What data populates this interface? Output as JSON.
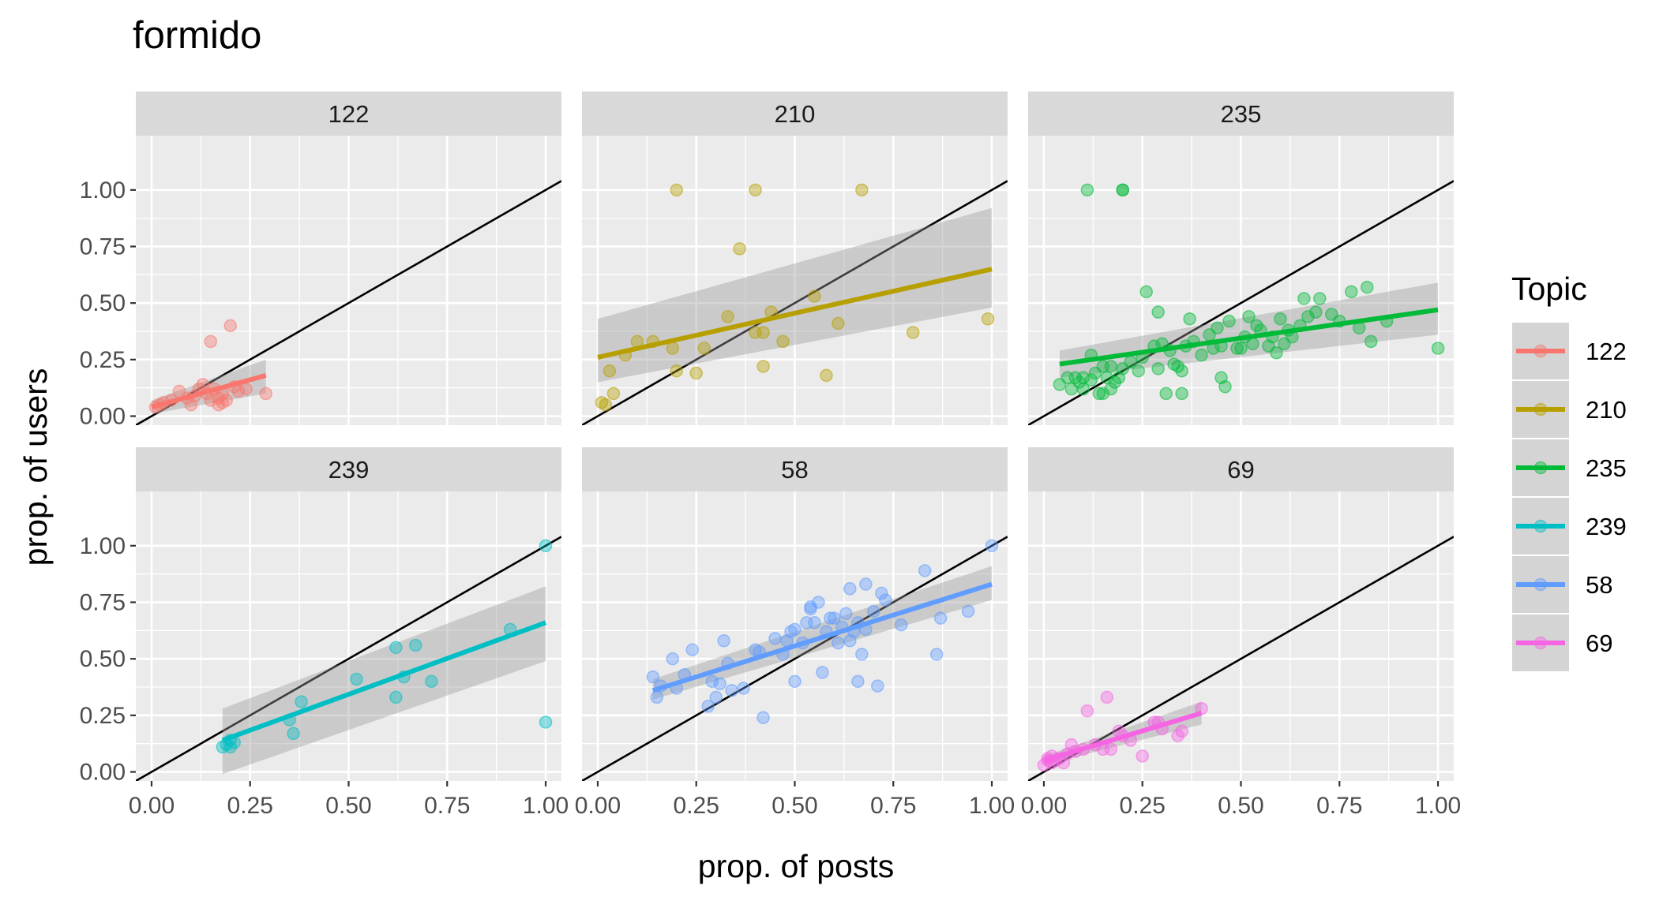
{
  "chart_data": {
    "type": "scatter",
    "title": "formido",
    "xlabel": "prop. of posts",
    "ylabel": "prop. of users",
    "xlim": [
      -0.04,
      1.04
    ],
    "ylim": [
      -0.04,
      1.24
    ],
    "x_ticks": [
      0,
      0.25,
      0.5,
      0.75,
      1
    ],
    "y_ticks": [
      0,
      0.25,
      0.5,
      0.75,
      1
    ],
    "x_tick_labels": [
      "0.00",
      "0.25",
      "0.50",
      "0.75",
      "1.00"
    ],
    "y_tick_labels": [
      "0.00",
      "0.25",
      "0.50",
      "0.75",
      "1.00"
    ],
    "grid": true,
    "reference_line": "y = x",
    "legend": {
      "title": "Topic",
      "position": "right"
    },
    "facets": [
      {
        "name": "122",
        "color": "#F8766D",
        "fit": {
          "x": [
            0.0,
            0.29
          ],
          "y": [
            0.04,
            0.18
          ],
          "band_lower": [
            0.01,
            0.1
          ],
          "band_upper": [
            0.07,
            0.25
          ]
        },
        "points": [
          [
            0.01,
            0.04
          ],
          [
            0.02,
            0.05
          ],
          [
            0.03,
            0.06
          ],
          [
            0.05,
            0.07
          ],
          [
            0.07,
            0.11
          ],
          [
            0.09,
            0.08
          ],
          [
            0.1,
            0.05
          ],
          [
            0.11,
            0.09
          ],
          [
            0.12,
            0.12
          ],
          [
            0.13,
            0.14
          ],
          [
            0.14,
            0.1
          ],
          [
            0.15,
            0.07
          ],
          [
            0.15,
            0.33
          ],
          [
            0.16,
            0.12
          ],
          [
            0.17,
            0.08
          ],
          [
            0.17,
            0.05
          ],
          [
            0.18,
            0.1
          ],
          [
            0.18,
            0.06
          ],
          [
            0.19,
            0.07
          ],
          [
            0.2,
            0.4
          ],
          [
            0.21,
            0.13
          ],
          [
            0.22,
            0.11
          ],
          [
            0.24,
            0.12
          ],
          [
            0.29,
            0.1
          ]
        ]
      },
      {
        "name": "210",
        "color": "#B79F00",
        "fit": {
          "x": [
            0.0,
            1.0
          ],
          "y": [
            0.26,
            0.65
          ],
          "band_lower": [
            0.15,
            0.48
          ],
          "band_upper": [
            0.43,
            0.92
          ]
        },
        "points": [
          [
            0.01,
            0.06
          ],
          [
            0.02,
            0.05
          ],
          [
            0.03,
            0.2
          ],
          [
            0.04,
            0.1
          ],
          [
            0.07,
            0.27
          ],
          [
            0.1,
            0.33
          ],
          [
            0.14,
            0.33
          ],
          [
            0.19,
            0.3
          ],
          [
            0.2,
            0.2
          ],
          [
            0.2,
            1.0
          ],
          [
            0.25,
            0.19
          ],
          [
            0.27,
            0.3
          ],
          [
            0.33,
            0.44
          ],
          [
            0.36,
            0.74
          ],
          [
            0.4,
            1.0
          ],
          [
            0.42,
            0.22
          ],
          [
            0.42,
            0.37
          ],
          [
            0.47,
            0.33
          ],
          [
            0.55,
            0.53
          ],
          [
            0.58,
            0.18
          ],
          [
            0.61,
            0.41
          ],
          [
            0.67,
            1.0
          ],
          [
            0.8,
            0.37
          ],
          [
            0.99,
            0.43
          ],
          [
            0.4,
            0.37
          ],
          [
            0.44,
            0.46
          ]
        ]
      },
      {
        "name": "235",
        "color": "#00BA38",
        "fit": {
          "x": [
            0.04,
            1.0
          ],
          "y": [
            0.23,
            0.47
          ],
          "band_lower": [
            0.17,
            0.36
          ],
          "band_upper": [
            0.29,
            0.59
          ]
        },
        "points": [
          [
            0.04,
            0.14
          ],
          [
            0.06,
            0.17
          ],
          [
            0.07,
            0.12
          ],
          [
            0.08,
            0.17
          ],
          [
            0.09,
            0.15
          ],
          [
            0.1,
            0.17
          ],
          [
            0.1,
            0.12
          ],
          [
            0.12,
            0.16
          ],
          [
            0.12,
            0.27
          ],
          [
            0.13,
            0.19
          ],
          [
            0.14,
            0.1
          ],
          [
            0.15,
            0.22
          ],
          [
            0.15,
            0.1
          ],
          [
            0.16,
            0.17
          ],
          [
            0.17,
            0.12
          ],
          [
            0.17,
            0.22
          ],
          [
            0.18,
            0.15
          ],
          [
            0.19,
            0.17
          ],
          [
            0.2,
            0.21
          ],
          [
            0.11,
            1.0
          ],
          [
            0.2,
            1.0
          ],
          [
            0.2,
            1.0
          ],
          [
            0.22,
            0.24
          ],
          [
            0.24,
            0.2
          ],
          [
            0.25,
            0.26
          ],
          [
            0.26,
            0.55
          ],
          [
            0.28,
            0.31
          ],
          [
            0.29,
            0.46
          ],
          [
            0.29,
            0.21
          ],
          [
            0.3,
            0.32
          ],
          [
            0.31,
            0.1
          ],
          [
            0.32,
            0.29
          ],
          [
            0.33,
            0.23
          ],
          [
            0.34,
            0.22
          ],
          [
            0.35,
            0.1
          ],
          [
            0.35,
            0.2
          ],
          [
            0.36,
            0.31
          ],
          [
            0.37,
            0.43
          ],
          [
            0.38,
            0.33
          ],
          [
            0.4,
            0.27
          ],
          [
            0.42,
            0.36
          ],
          [
            0.43,
            0.3
          ],
          [
            0.44,
            0.39
          ],
          [
            0.45,
            0.31
          ],
          [
            0.45,
            0.17
          ],
          [
            0.46,
            0.13
          ],
          [
            0.47,
            0.42
          ],
          [
            0.49,
            0.3
          ],
          [
            0.5,
            0.3
          ],
          [
            0.51,
            0.35
          ],
          [
            0.52,
            0.44
          ],
          [
            0.53,
            0.32
          ],
          [
            0.54,
            0.4
          ],
          [
            0.55,
            0.38
          ],
          [
            0.57,
            0.31
          ],
          [
            0.58,
            0.35
          ],
          [
            0.59,
            0.28
          ],
          [
            0.6,
            0.43
          ],
          [
            0.61,
            0.32
          ],
          [
            0.62,
            0.38
          ],
          [
            0.63,
            0.35
          ],
          [
            0.65,
            0.4
          ],
          [
            0.66,
            0.52
          ],
          [
            0.67,
            0.44
          ],
          [
            0.69,
            0.46
          ],
          [
            0.7,
            0.52
          ],
          [
            0.73,
            0.45
          ],
          [
            0.75,
            0.42
          ],
          [
            0.78,
            0.55
          ],
          [
            0.8,
            0.39
          ],
          [
            0.82,
            0.57
          ],
          [
            0.83,
            0.33
          ],
          [
            0.87,
            0.42
          ],
          [
            1.0,
            0.3
          ]
        ]
      },
      {
        "name": "239",
        "color": "#00BFC4",
        "fit": {
          "x": [
            0.18,
            1.0
          ],
          "y": [
            0.14,
            0.66
          ],
          "band_lower": [
            -0.01,
            0.49
          ],
          "band_upper": [
            0.28,
            0.82
          ]
        },
        "points": [
          [
            0.18,
            0.11
          ],
          [
            0.19,
            0.12
          ],
          [
            0.2,
            0.14
          ],
          [
            0.2,
            0.11
          ],
          [
            0.21,
            0.13
          ],
          [
            0.35,
            0.23
          ],
          [
            0.36,
            0.17
          ],
          [
            0.38,
            0.31
          ],
          [
            0.52,
            0.41
          ],
          [
            0.62,
            0.55
          ],
          [
            0.62,
            0.33
          ],
          [
            0.64,
            0.42
          ],
          [
            0.67,
            0.56
          ],
          [
            0.71,
            0.4
          ],
          [
            0.91,
            0.63
          ],
          [
            1.0,
            1.0
          ],
          [
            1.0,
            0.22
          ]
        ]
      },
      {
        "name": "58",
        "color": "#619CFF",
        "fit": {
          "x": [
            0.14,
            1.0
          ],
          "y": [
            0.36,
            0.83
          ],
          "band_lower": [
            0.32,
            0.76
          ],
          "band_upper": [
            0.41,
            0.91
          ]
        },
        "points": [
          [
            0.14,
            0.42
          ],
          [
            0.15,
            0.33
          ],
          [
            0.16,
            0.38
          ],
          [
            0.19,
            0.5
          ],
          [
            0.2,
            0.37
          ],
          [
            0.22,
            0.43
          ],
          [
            0.24,
            0.54
          ],
          [
            0.28,
            0.29
          ],
          [
            0.29,
            0.4
          ],
          [
            0.3,
            0.33
          ],
          [
            0.31,
            0.39
          ],
          [
            0.32,
            0.58
          ],
          [
            0.33,
            0.48
          ],
          [
            0.34,
            0.36
          ],
          [
            0.37,
            0.37
          ],
          [
            0.4,
            0.54
          ],
          [
            0.41,
            0.53
          ],
          [
            0.42,
            0.24
          ],
          [
            0.45,
            0.59
          ],
          [
            0.47,
            0.52
          ],
          [
            0.48,
            0.58
          ],
          [
            0.49,
            0.62
          ],
          [
            0.5,
            0.4
          ],
          [
            0.5,
            0.63
          ],
          [
            0.52,
            0.57
          ],
          [
            0.53,
            0.66
          ],
          [
            0.54,
            0.73
          ],
          [
            0.54,
            0.72
          ],
          [
            0.55,
            0.66
          ],
          [
            0.56,
            0.75
          ],
          [
            0.57,
            0.44
          ],
          [
            0.58,
            0.62
          ],
          [
            0.59,
            0.68
          ],
          [
            0.6,
            0.68
          ],
          [
            0.61,
            0.57
          ],
          [
            0.62,
            0.64
          ],
          [
            0.63,
            0.7
          ],
          [
            0.64,
            0.58
          ],
          [
            0.64,
            0.81
          ],
          [
            0.65,
            0.62
          ],
          [
            0.66,
            0.4
          ],
          [
            0.66,
            0.66
          ],
          [
            0.67,
            0.52
          ],
          [
            0.68,
            0.63
          ],
          [
            0.68,
            0.83
          ],
          [
            0.7,
            0.71
          ],
          [
            0.71,
            0.38
          ],
          [
            0.72,
            0.79
          ],
          [
            0.73,
            0.76
          ],
          [
            0.77,
            0.65
          ],
          [
            0.83,
            0.89
          ],
          [
            0.86,
            0.52
          ],
          [
            0.87,
            0.68
          ],
          [
            0.94,
            0.71
          ],
          [
            1.0,
            1.0
          ]
        ]
      },
      {
        "name": "69",
        "color": "#F564E3",
        "fit": {
          "x": [
            0.0,
            0.4
          ],
          "y": [
            0.05,
            0.26
          ],
          "band_lower": [
            0.03,
            0.21
          ],
          "band_upper": [
            0.07,
            0.31
          ]
        },
        "points": [
          [
            0.0,
            0.03
          ],
          [
            0.01,
            0.05
          ],
          [
            0.01,
            0.06
          ],
          [
            0.02,
            0.04
          ],
          [
            0.02,
            0.07
          ],
          [
            0.03,
            0.05
          ],
          [
            0.04,
            0.06
          ],
          [
            0.05,
            0.04
          ],
          [
            0.06,
            0.08
          ],
          [
            0.07,
            0.12
          ],
          [
            0.08,
            0.09
          ],
          [
            0.1,
            0.1
          ],
          [
            0.11,
            0.27
          ],
          [
            0.13,
            0.12
          ],
          [
            0.15,
            0.1
          ],
          [
            0.16,
            0.33
          ],
          [
            0.17,
            0.1
          ],
          [
            0.19,
            0.18
          ],
          [
            0.2,
            0.16
          ],
          [
            0.22,
            0.14
          ],
          [
            0.25,
            0.07
          ],
          [
            0.28,
            0.22
          ],
          [
            0.29,
            0.22
          ],
          [
            0.3,
            0.19
          ],
          [
            0.34,
            0.16
          ],
          [
            0.35,
            0.18
          ],
          [
            0.4,
            0.28
          ]
        ]
      }
    ]
  }
}
